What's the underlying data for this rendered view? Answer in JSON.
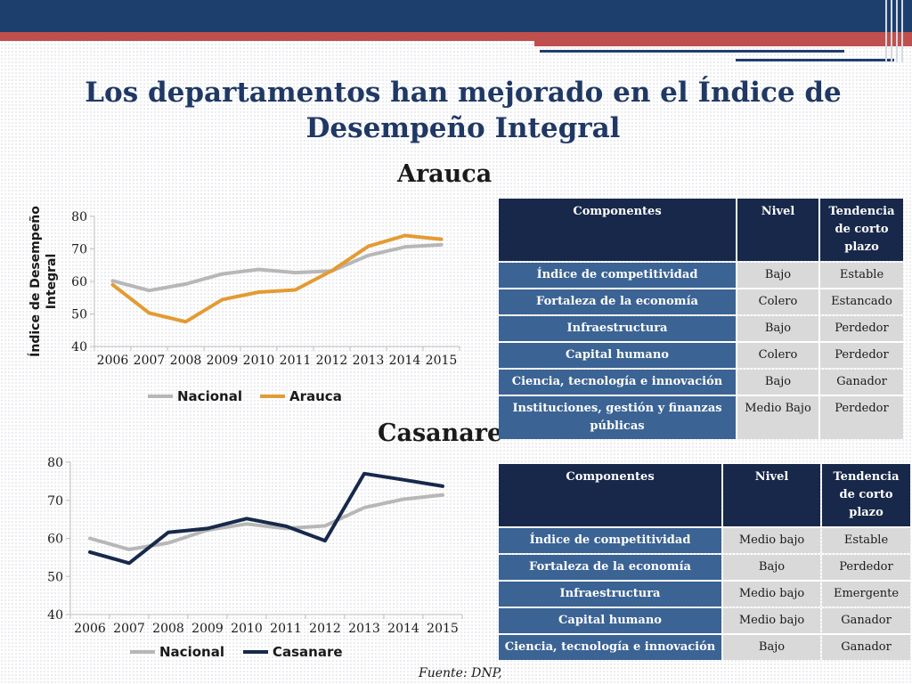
{
  "colors": {
    "header": "#1d3f6e",
    "accent_red": "#c0504d",
    "nacional": "#b7b7b7",
    "arauca": "#e39b32",
    "casanare": "#17294b",
    "table_header": "#17284a",
    "table_row": "#3b6394",
    "table_cell": "#d9d9d9"
  },
  "slide": {
    "title": "Los departamentos han mejorado en el Índice de Desempeño Integral",
    "source": "Fuente: DNP,"
  },
  "arauca": {
    "subtitle": "Arauca",
    "table": {
      "headers": [
        "Componentes",
        "Nivel",
        "Tendencia de corto plazo"
      ],
      "rows": [
        {
          "componente": "Índice de competitividad",
          "nivel": "Bajo",
          "tendencia": "Estable"
        },
        {
          "componente": "Fortaleza de la economía",
          "nivel": "Colero",
          "tendencia": "Estancado"
        },
        {
          "componente": "Infraestructura",
          "nivel": "Bajo",
          "tendencia": "Perdedor"
        },
        {
          "componente": "Capital humano",
          "nivel": "Colero",
          "tendencia": "Perdedor"
        },
        {
          "componente": "Ciencia, tecnología e innovación",
          "nivel": "Bajo",
          "tendencia": "Ganador"
        },
        {
          "componente": "Instituciones, gestión y finanzas públicas",
          "nivel": "Medio Bajo",
          "tendencia": "Perdedor"
        }
      ]
    }
  },
  "casanare": {
    "subtitle": "Casanare",
    "table": {
      "headers": [
        "Componentes",
        "Nivel",
        "Tendencia de corto plazo"
      ],
      "rows": [
        {
          "componente": "Índice de competitividad",
          "nivel": "Medio bajo",
          "tendencia": "Estable"
        },
        {
          "componente": "Fortaleza de la economía",
          "nivel": "Bajo",
          "tendencia": "Perdedor"
        },
        {
          "componente": "Infraestructura",
          "nivel": "Medio bajo",
          "tendencia": "Emergente"
        },
        {
          "componente": "Capital humano",
          "nivel": "Medio bajo",
          "tendencia": "Ganador"
        },
        {
          "componente": "Ciencia, tecnología e innovación",
          "nivel": "Bajo",
          "tendencia": "Ganador"
        }
      ]
    }
  },
  "chart_data": [
    {
      "type": "line",
      "title": "",
      "xlabel": "",
      "ylabel": "Índice de Desempeño Integral",
      "categories": [
        "2006",
        "2007",
        "2008",
        "2009",
        "2010",
        "2011",
        "2012",
        "2013",
        "2014",
        "2015"
      ],
      "ylim": [
        40,
        80
      ],
      "yticks": [
        40,
        50,
        60,
        70,
        80
      ],
      "grid": false,
      "legend": "bottom",
      "series": [
        {
          "name": "Nacional",
          "color": "#b7b7b7",
          "values": [
            60.2,
            57.2,
            59.2,
            62.3,
            63.7,
            62.7,
            63.2,
            68.0,
            70.6,
            71.3
          ]
        },
        {
          "name": "Arauca",
          "color": "#e39b32",
          "values": [
            59.0,
            50.3,
            47.6,
            54.4,
            56.7,
            57.4,
            63.3,
            70.8,
            74.1,
            73.0
          ]
        }
      ]
    },
    {
      "type": "line",
      "title": "",
      "xlabel": "",
      "ylabel": "",
      "categories": [
        "2006",
        "2007",
        "2008",
        "2009",
        "2010",
        "2011",
        "2012",
        "2013",
        "2014",
        "2015"
      ],
      "ylim": [
        40,
        80
      ],
      "yticks": [
        40,
        50,
        60,
        70,
        80
      ],
      "grid": false,
      "legend": "bottom",
      "series": [
        {
          "name": "Nacional",
          "color": "#b7b7b7",
          "values": [
            60.0,
            57.1,
            58.8,
            62.2,
            63.8,
            62.6,
            63.3,
            68.1,
            70.3,
            71.4
          ]
        },
        {
          "name": "Casanare",
          "color": "#17294b",
          "values": [
            56.4,
            53.5,
            61.6,
            62.6,
            65.2,
            63.2,
            59.4,
            77.0,
            75.4,
            73.7
          ]
        }
      ]
    }
  ]
}
